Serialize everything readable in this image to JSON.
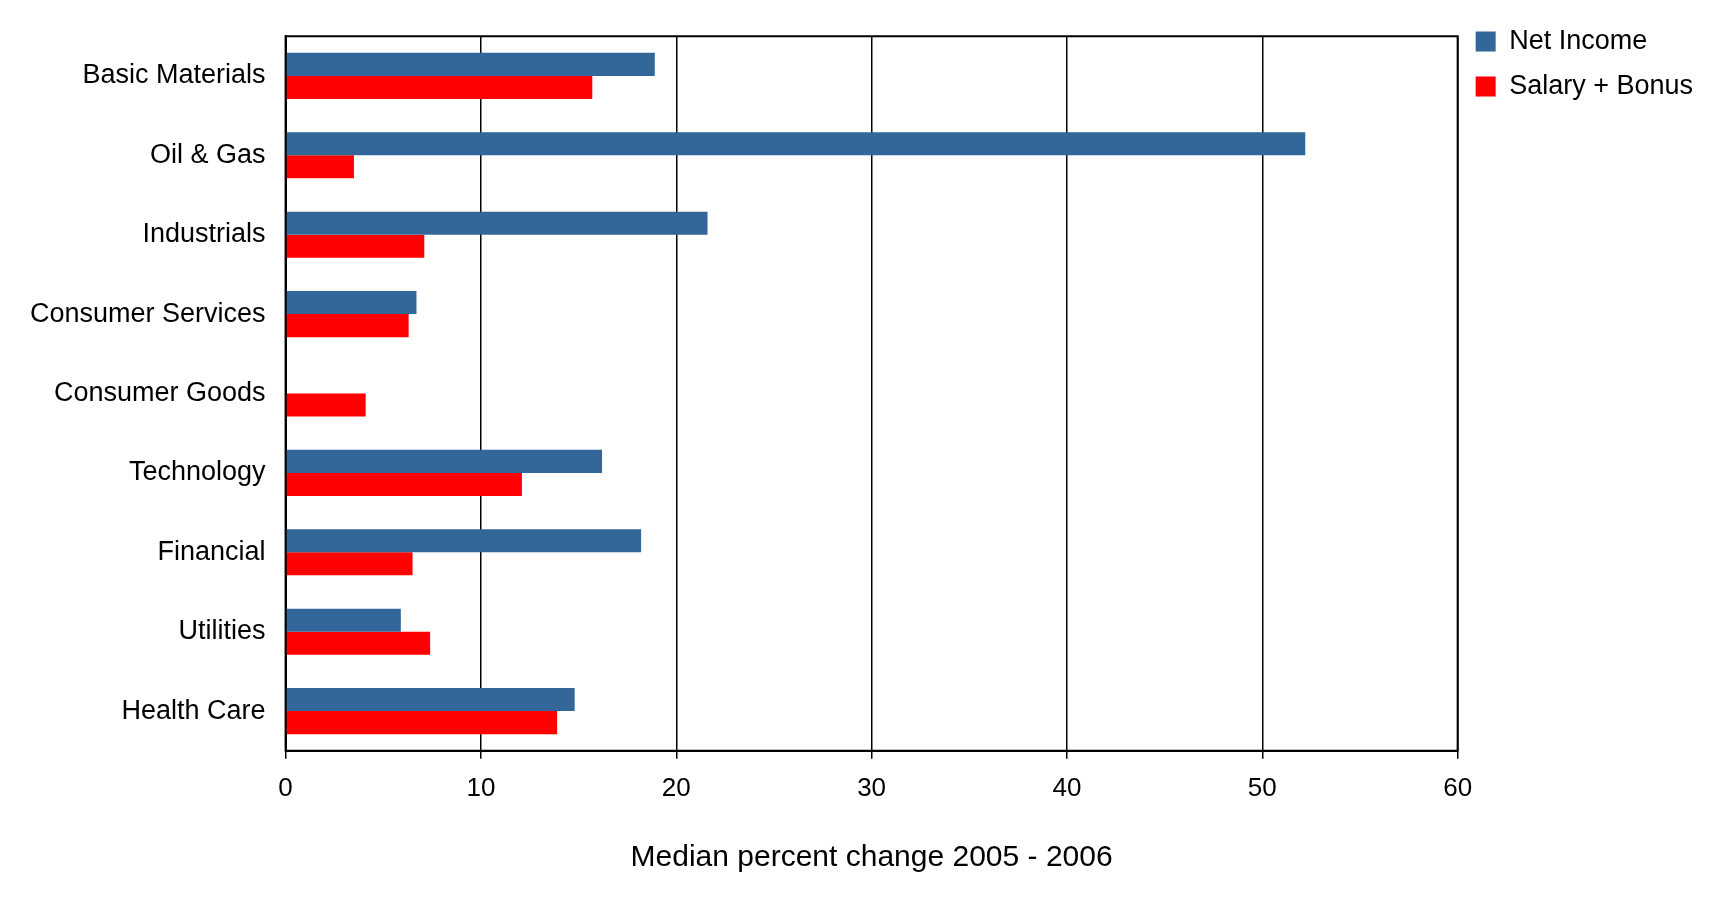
{
  "chart_data": {
    "type": "bar",
    "orientation": "horizontal",
    "xlabel": "Median percent change 2005 - 2006",
    "categories": [
      "Basic Materials",
      "Oil & Gas",
      "Industrials",
      "Consumer Services",
      "Consumer Goods",
      "Technology",
      "Financial",
      "Utilities",
      "Health Care"
    ],
    "series": [
      {
        "name": "Net Income",
        "color": "#336699",
        "values": [
          18.9,
          52.2,
          21.6,
          6.7,
          null,
          16.2,
          18.2,
          5.9,
          14.8
        ]
      },
      {
        "name": "Salary + Bonus",
        "color": "#ff0000",
        "values": [
          15.7,
          3.5,
          7.1,
          6.3,
          4.1,
          12.1,
          6.5,
          7.4,
          13.9
        ]
      }
    ],
    "xlim": [
      0,
      60
    ],
    "xticks": [
      0,
      10,
      20,
      30,
      40,
      50,
      60
    ],
    "grid": "x",
    "legend": "top right"
  }
}
